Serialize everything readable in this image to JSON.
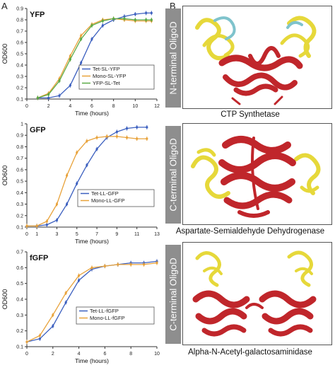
{
  "panels": {
    "a": "A",
    "b": "B"
  },
  "chart_data": [
    {
      "type": "line",
      "title": "YFP",
      "xlabel": "Time (hours)",
      "ylabel": "OD600",
      "xlim": [
        0,
        12
      ],
      "ylim": [
        0.1,
        0.9
      ],
      "xticks": [
        0,
        2,
        4,
        6,
        8,
        10,
        12
      ],
      "yticks": [
        0.1,
        0.2,
        0.3,
        0.4,
        0.5,
        0.6,
        0.7,
        0.8,
        0.9
      ],
      "legend_position": "bottom-right",
      "series": [
        {
          "name": "Tet-SL-YFP",
          "color": "#3b5fbf",
          "x": [
            1,
            2,
            3,
            4,
            5,
            6,
            7,
            8,
            9,
            10,
            11,
            11.5
          ],
          "y": [
            0.11,
            0.11,
            0.13,
            0.22,
            0.42,
            0.63,
            0.75,
            0.8,
            0.83,
            0.85,
            0.86,
            0.86
          ]
        },
        {
          "name": "Mono-SL-YFP",
          "color": "#e8a23a",
          "x": [
            1,
            2,
            3,
            4,
            5,
            6,
            7,
            8,
            9,
            10,
            11,
            11.5
          ],
          "y": [
            0.11,
            0.15,
            0.28,
            0.48,
            0.66,
            0.76,
            0.8,
            0.81,
            0.8,
            0.79,
            0.79,
            0.79
          ]
        },
        {
          "name": "YFP-SL-Tet",
          "color": "#5aaa46",
          "x": [
            1,
            2,
            3,
            4,
            5,
            6,
            7,
            8,
            9,
            10,
            11,
            11.5
          ],
          "y": [
            0.11,
            0.14,
            0.26,
            0.45,
            0.63,
            0.75,
            0.79,
            0.81,
            0.81,
            0.8,
            0.8,
            0.8
          ]
        }
      ]
    },
    {
      "type": "line",
      "title": "GFP",
      "xlabel": "Time (hours)",
      "ylabel": "OD600",
      "xlim": [
        0,
        13
      ],
      "ylim": [
        0.1,
        1
      ],
      "xticks": [
        0,
        1,
        3,
        5,
        7,
        9,
        11,
        13
      ],
      "yticks": [
        0.1,
        0.2,
        0.3,
        0.4,
        0.5,
        0.6,
        0.7,
        0.8,
        0.9,
        1
      ],
      "legend_position": "bottom-right",
      "series": [
        {
          "name": "Tet-LL-GFP",
          "color": "#3b5fbf",
          "x": [
            0,
            1,
            2,
            3,
            4,
            5,
            6,
            7,
            8,
            9,
            10,
            11,
            12
          ],
          "y": [
            0.11,
            0.11,
            0.12,
            0.16,
            0.3,
            0.48,
            0.64,
            0.78,
            0.88,
            0.93,
            0.96,
            0.97,
            0.97
          ]
        },
        {
          "name": "Mono-LL-GFP",
          "color": "#e8a23a",
          "x": [
            0,
            1,
            2,
            3,
            4,
            5,
            6,
            7,
            8,
            9,
            10,
            11,
            12
          ],
          "y": [
            0.11,
            0.11,
            0.15,
            0.3,
            0.55,
            0.75,
            0.85,
            0.88,
            0.89,
            0.89,
            0.88,
            0.87,
            0.87
          ]
        }
      ]
    },
    {
      "type": "line",
      "title": "fGFP",
      "xlabel": "Time (hours)",
      "ylabel": "OD600",
      "xlim": [
        0,
        10
      ],
      "ylim": [
        0.1,
        0.7
      ],
      "xticks": [
        0,
        2,
        4,
        6,
        8,
        10
      ],
      "yticks": [
        0.1,
        0.2,
        0.3,
        0.4,
        0.5,
        0.6,
        0.7
      ],
      "legend_position": "bottom-right",
      "series": [
        {
          "name": "Tet-LL-fGFP",
          "color": "#3b5fbf",
          "x": [
            0,
            1,
            2,
            3,
            4,
            5,
            6,
            7,
            8,
            9,
            10
          ],
          "y": [
            0.13,
            0.15,
            0.23,
            0.38,
            0.52,
            0.59,
            0.61,
            0.62,
            0.63,
            0.63,
            0.64
          ]
        },
        {
          "name": "Mono-LL-fGFP",
          "color": "#e8a23a",
          "x": [
            0,
            1,
            2,
            3,
            4,
            5,
            6,
            7,
            8,
            9,
            10
          ],
          "y": [
            0.13,
            0.17,
            0.3,
            0.44,
            0.55,
            0.6,
            0.61,
            0.62,
            0.62,
            0.62,
            0.63
          ]
        }
      ]
    }
  ],
  "structures": [
    {
      "side_label": "N-terminal OligoD",
      "name": "CTP Synthetase"
    },
    {
      "side_label": "C-terminal OligoD",
      "name": "Aspartate-Semialdehyde Dehydrogenase"
    },
    {
      "side_label": "C-terminal OligoD",
      "name": "Alpha-N-Acetyl-galactosaminidase"
    }
  ],
  "colors": {
    "helix_red": "#c0262b",
    "domain_yellow": "#e6d83a",
    "accent_cyan": "#7fc3cc",
    "label_gray": "#8e8e8e"
  }
}
